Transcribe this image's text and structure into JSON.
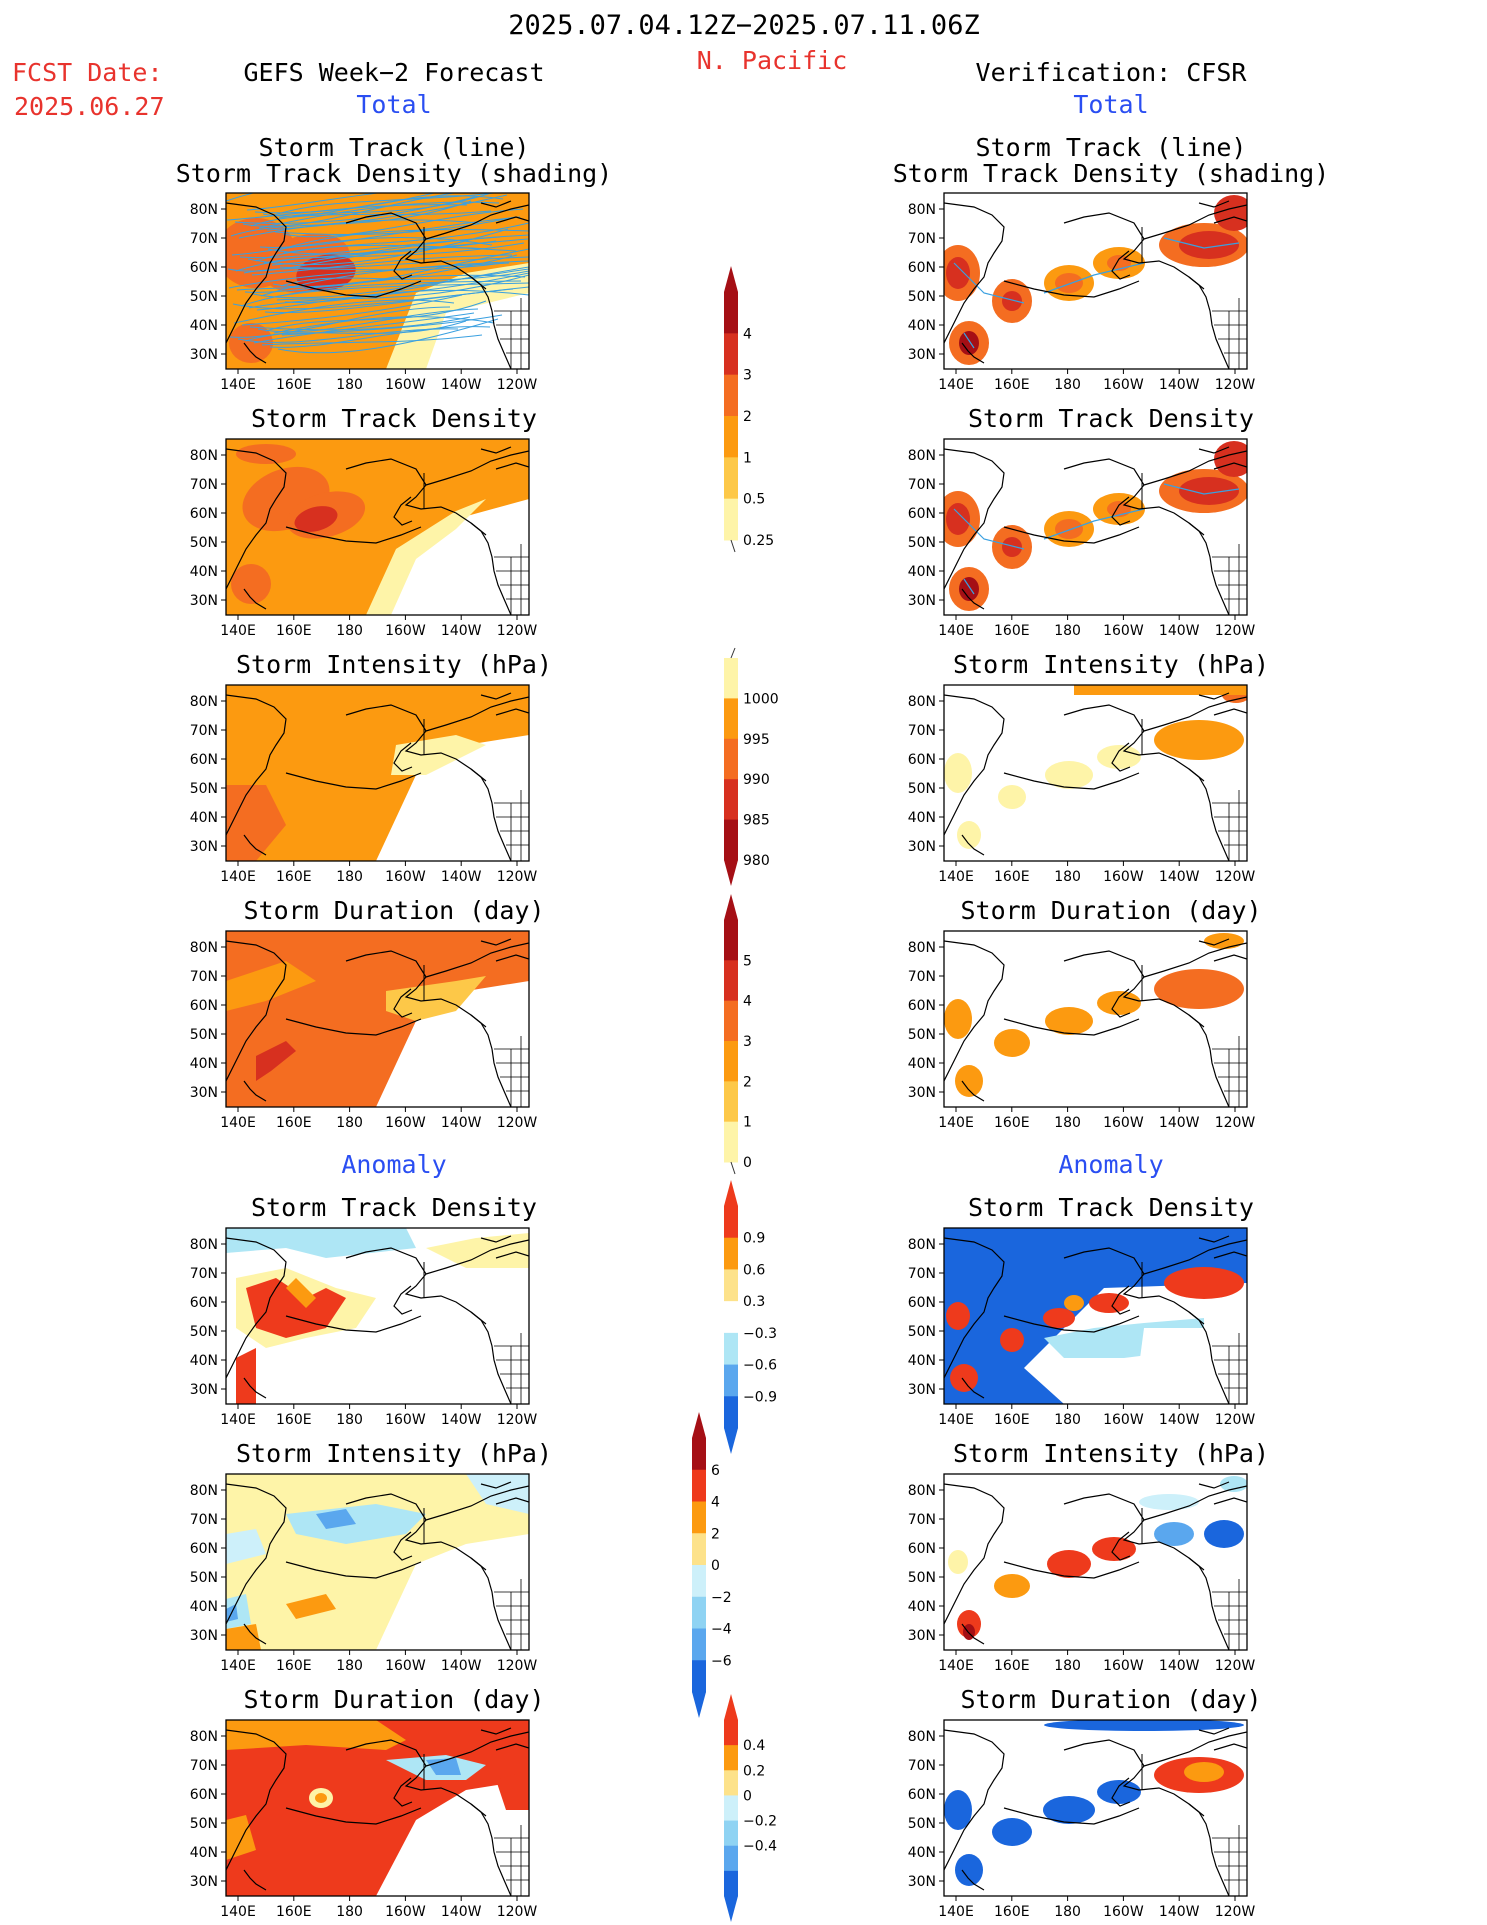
{
  "header": {
    "period": "2025.07.04.12Z−2025.07.11.06Z",
    "region": "N. Pacific",
    "fcst_label": "FCST Date:",
    "fcst_date": "2025.06.27",
    "left_title": "GEFS Week−2 Forecast",
    "right_title": "Verification: CFSR",
    "total_label": "Total",
    "anomaly_label": "Anomaly"
  },
  "panel_titles": {
    "track_line": "Storm Track (line)",
    "track_density_shading": "Storm Track Density (shading)",
    "track_density": "Storm Track Density",
    "intensity": "Storm Intensity (hPa)",
    "duration": "Storm Duration (day)"
  },
  "axes": {
    "x_ticks": [
      "140E",
      "160E",
      "180",
      "160W",
      "140W",
      "120W"
    ],
    "y_ticks": [
      "80N",
      "70N",
      "60N",
      "50N",
      "40N",
      "30N"
    ]
  },
  "colorbars": {
    "density_total": {
      "labels": [
        "4",
        "3",
        "2",
        "1",
        "0.5",
        "0.25"
      ],
      "colors": [
        "#a50f15",
        "#d7301f",
        "#f46d21",
        "#fc9a10",
        "#fdc848",
        "#fef4a8"
      ]
    },
    "intensity_total": {
      "labels": [
        "1000",
        "995",
        "990",
        "985",
        "980"
      ],
      "colors": [
        "#fef4a8",
        "#fc9a10",
        "#f46d21",
        "#d7301f",
        "#a50f15"
      ]
    },
    "duration_total": {
      "labels": [
        "5",
        "4",
        "3",
        "2",
        "1",
        "0"
      ],
      "colors": [
        "#a50f15",
        "#d7301f",
        "#f46d21",
        "#fc9a10",
        "#fdc848",
        "#fef4a8"
      ]
    },
    "density_anom": {
      "labels": [
        "0.9",
        "0.6",
        "0.3",
        "−0.3",
        "−0.6",
        "−0.9"
      ],
      "colors": [
        "#ee3a1c",
        "#fc9a10",
        "#fde28a",
        "#ffffff",
        "#aee6f5",
        "#5aa7ee",
        "#1a66dd"
      ]
    },
    "intensity_anom": {
      "labels": [
        "6",
        "4",
        "2",
        "0",
        "−2",
        "−4",
        "−6"
      ],
      "colors": [
        "#a50f15",
        "#ee3a1c",
        "#fc9a10",
        "#fde28a",
        "#cdf0fa",
        "#8fd3f3",
        "#5aa7ee",
        "#1a66dd"
      ]
    },
    "duration_anom": {
      "labels": [
        "0.4",
        "0.2",
        "0",
        "−0.2",
        "−0.4"
      ],
      "colors": [
        "#ee3a1c",
        "#fc9a10",
        "#fde28a",
        "#cdf0fa",
        "#8fd3f3",
        "#5aa7ee",
        "#1a66dd"
      ]
    }
  }
}
